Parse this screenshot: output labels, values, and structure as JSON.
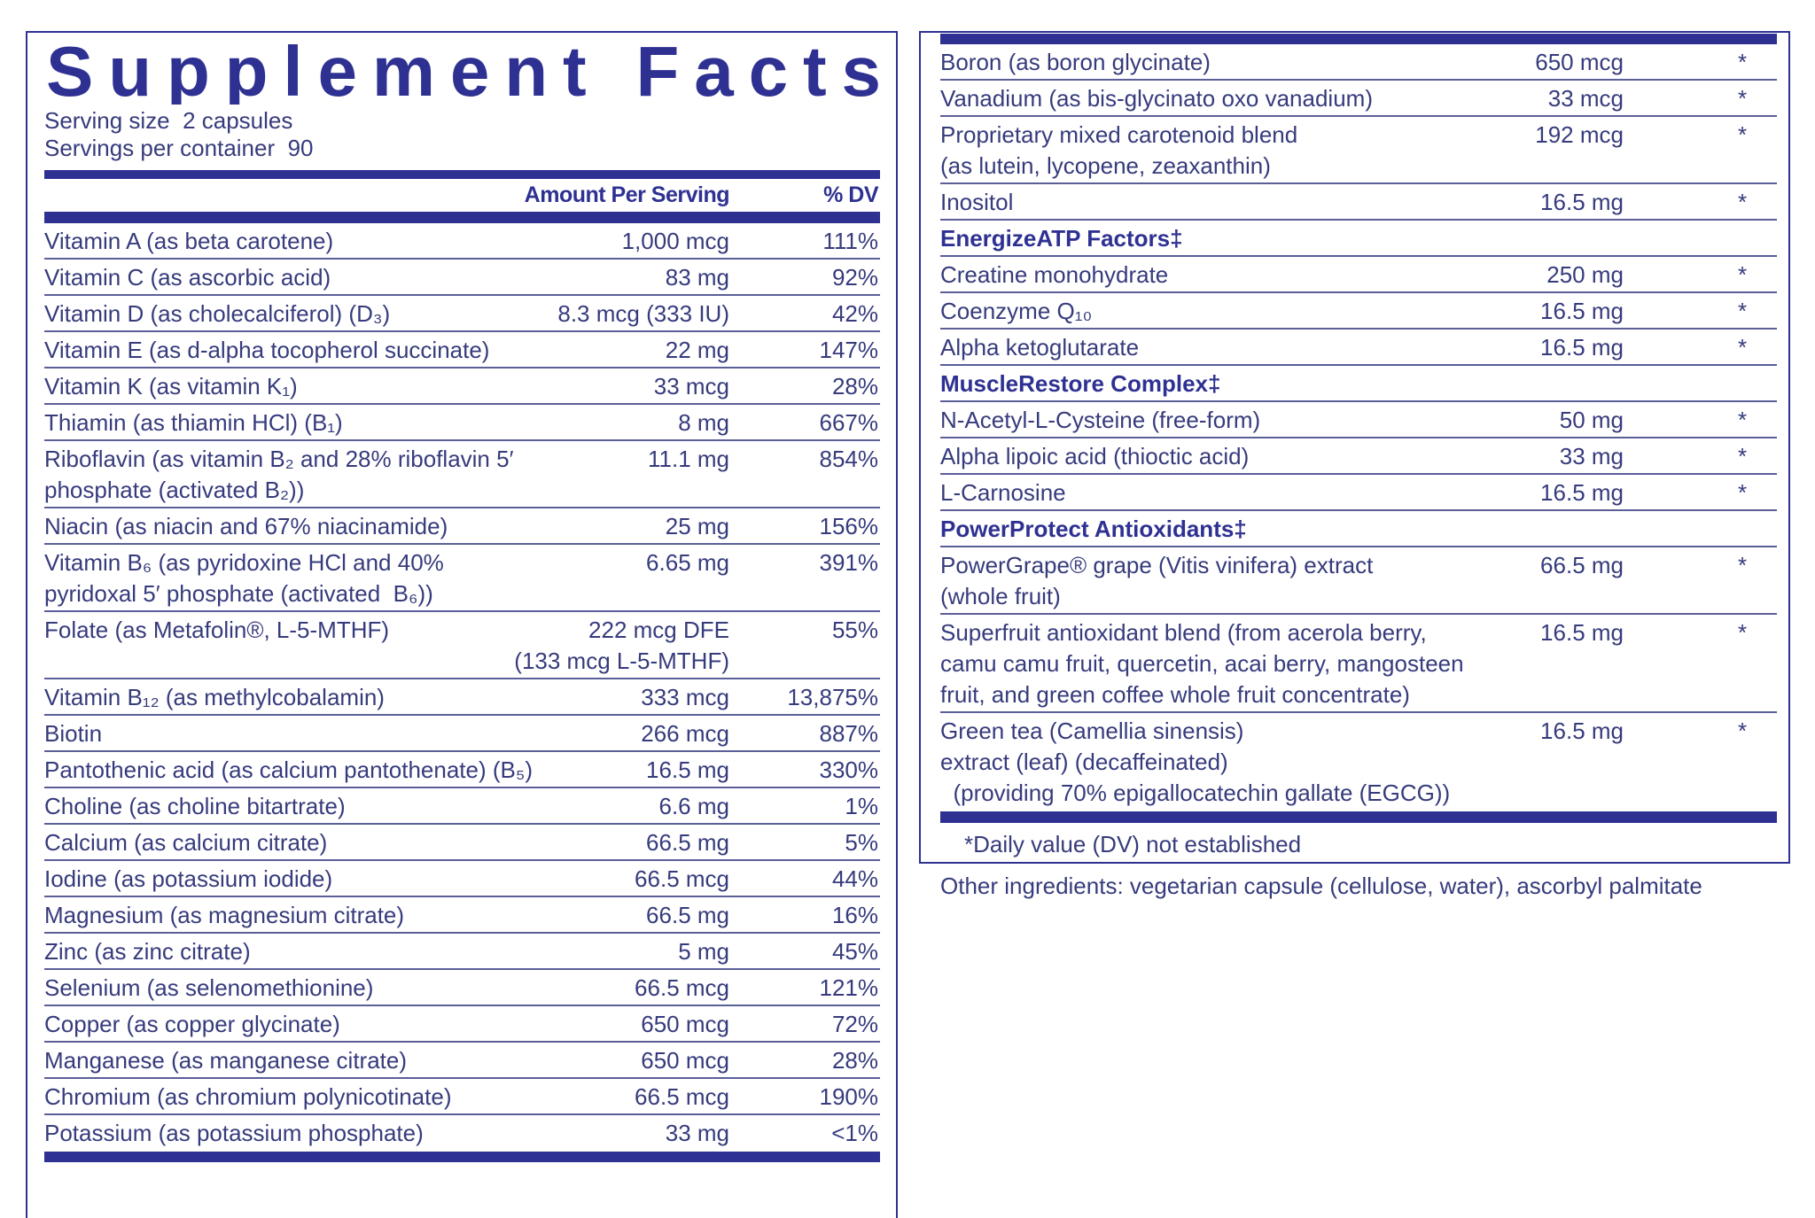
{
  "left": {
    "title": "Supplement Facts",
    "serving_size": "Serving size  2 capsules",
    "servings_per_container": "Servings per container  90",
    "header": {
      "amount": "Amount Per Serving",
      "dv": "% DV"
    },
    "rows": [
      {
        "name": "Vitamin A (as beta carotene)",
        "amount": "1,000 mcg",
        "dv": "111%"
      },
      {
        "name": "Vitamin C (as ascorbic acid)",
        "amount": "83 mg",
        "dv": "92%"
      },
      {
        "name": "Vitamin D (as cholecalciferol) (D₃)",
        "amount": "8.3 mcg (333 IU)",
        "dv": "42%"
      },
      {
        "name": "Vitamin E (as d-alpha tocopherol succinate)",
        "amount": "22 mg",
        "dv": "147%"
      },
      {
        "name": "Vitamin K (as vitamin K₁)",
        "amount": "33 mcg",
        "dv": "28%"
      },
      {
        "name": "Thiamin (as thiamin HCl) (B₁)",
        "amount": "8 mg",
        "dv": "667%"
      },
      {
        "name": [
          "Riboflavin (as vitamin B₂ and 28% riboflavin 5′",
          "phosphate (activated B₂))"
        ],
        "amount": "11.1 mg",
        "dv": "854%"
      },
      {
        "name": "Niacin (as niacin and 67% niacinamide)",
        "amount": "25 mg",
        "dv": "156%"
      },
      {
        "name": [
          "Vitamin B₆ (as pyridoxine HCl and 40%",
          "pyridoxal 5′ phosphate (activated  B₆))"
        ],
        "amount": "6.65 mg",
        "dv": "391%"
      },
      {
        "name": "Folate (as Metafolin®, L-5-MTHF)",
        "amount": [
          "222 mcg DFE",
          "(133 mcg L-5-MTHF)"
        ],
        "dv": "55%"
      },
      {
        "name": "Vitamin B₁₂ (as methylcobalamin)",
        "amount": "333 mcg",
        "dv": "13,875%"
      },
      {
        "name": "Biotin",
        "amount": "266 mcg",
        "dv": "887%"
      },
      {
        "name": "Pantothenic acid (as calcium pantothenate) (B₅)",
        "amount": "16.5 mg",
        "dv": "330%"
      },
      {
        "name": "Choline (as choline bitartrate)",
        "amount": "6.6 mg",
        "dv": "1%"
      },
      {
        "name": "Calcium (as calcium citrate)",
        "amount": "66.5 mg",
        "dv": "5%"
      },
      {
        "name": "Iodine (as potassium iodide)",
        "amount": "66.5 mcg",
        "dv": "44%"
      },
      {
        "name": "Magnesium (as magnesium citrate)",
        "amount": "66.5 mg",
        "dv": "16%"
      },
      {
        "name": "Zinc (as zinc citrate)",
        "amount": "5 mg",
        "dv": "45%"
      },
      {
        "name": "Selenium (as selenomethionine)",
        "amount": "66.5 mcg",
        "dv": "121%"
      },
      {
        "name": "Copper (as copper glycinate)",
        "amount": "650 mcg",
        "dv": "72%"
      },
      {
        "name": "Manganese (as manganese citrate)",
        "amount": "650 mcg",
        "dv": "28%"
      },
      {
        "name": "Chromium (as chromium polynicotinate)",
        "amount": "66.5 mcg",
        "dv": "190%"
      },
      {
        "name": "Potassium (as potassium phosphate)",
        "amount": "33 mg",
        "dv": "<1%"
      }
    ]
  },
  "right": {
    "rows": [
      {
        "name": "Boron (as boron glycinate)",
        "amount": "650 mcg",
        "dv": "*"
      },
      {
        "name": "Vanadium (as bis-glycinato oxo vanadium)",
        "amount": "33 mcg",
        "dv": "*"
      },
      {
        "name": [
          "Proprietary mixed carotenoid blend",
          "(as lutein, lycopene, zeaxanthin)"
        ],
        "amount": "192 mcg",
        "dv": "*"
      },
      {
        "name": "Inositol",
        "amount": "16.5 mg",
        "dv": "*"
      },
      {
        "section": "EnergizeATP Factors‡"
      },
      {
        "name": "Creatine monohydrate",
        "amount": "250 mg",
        "dv": "*"
      },
      {
        "name": "Coenzyme Q₁₀",
        "amount": "16.5 mg",
        "dv": "*"
      },
      {
        "name": "Alpha ketoglutarate",
        "amount": "16.5 mg",
        "dv": "*"
      },
      {
        "section": "MuscleRestore Complex‡"
      },
      {
        "name": "N-Acetyl-L-Cysteine (free-form)",
        "amount": "50 mg",
        "dv": "*"
      },
      {
        "name": "Alpha lipoic acid (thioctic acid)",
        "amount": "33 mg",
        "dv": "*"
      },
      {
        "name": "L-Carnosine",
        "amount": "16.5 mg",
        "dv": "*"
      },
      {
        "section": "PowerProtect Antioxidants‡"
      },
      {
        "name": [
          "PowerGrape® grape (Vitis vinifera) extract",
          "(whole fruit)"
        ],
        "amount": "66.5 mg",
        "dv": "*"
      },
      {
        "name": [
          "Superfruit antioxidant blend (from acerola berry,",
          "camu camu fruit, quercetin, acai berry, mangosteen",
          "fruit, and green coffee whole fruit concentrate)"
        ],
        "amount": "16.5 mg",
        "dv": "*"
      },
      {
        "name": [
          "Green tea (Camellia sinensis)",
          "extract (leaf) (decaffeinated)",
          "  (providing 70% epigallocatechin gallate (EGCG))"
        ],
        "amount": "16.5 mg",
        "dv": "*"
      }
    ],
    "footnote": "*Daily value (DV) not established"
  },
  "other_ingredients": "Other ingredients: vegetarian capsule (cellulose, water), ascorbyl palmitate"
}
